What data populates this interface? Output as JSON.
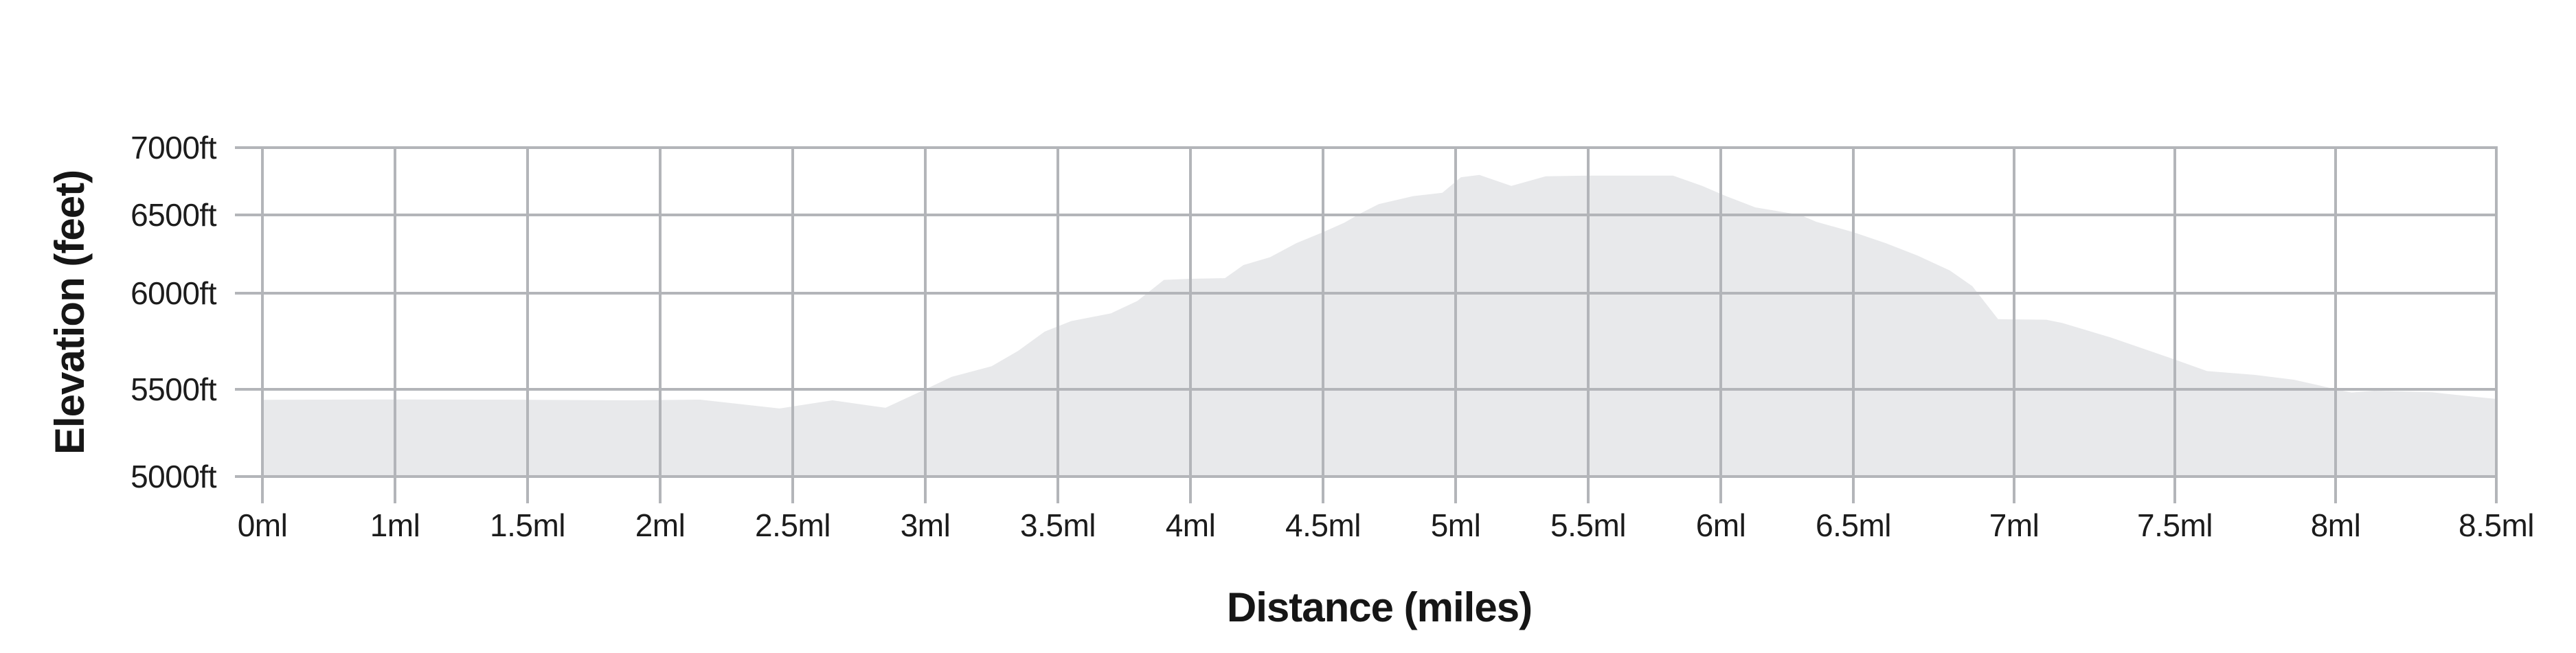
{
  "chart_data": {
    "type": "area",
    "title": "",
    "xlabel": "Distance (miles)",
    "ylabel": "Elevation (feet)",
    "x_tick_labels": [
      "0ml",
      "1ml",
      "1.5ml",
      "2ml",
      "2.5ml",
      "3ml",
      "3.5ml",
      "4ml",
      "4.5ml",
      "5ml",
      "5.5ml",
      "6ml",
      "6.5ml",
      "7ml",
      "7.5ml",
      "8ml",
      "8.5ml"
    ],
    "y_tick_labels": [
      "5000ft",
      "5500ft",
      "6000ft",
      "6500ft",
      "7000ft"
    ],
    "y_tick_values": [
      5000,
      5500,
      6000,
      6500,
      7000
    ],
    "ylim": [
      5000,
      7000
    ],
    "grid": true,
    "legend": false,
    "x_unit": "miles",
    "y_unit": "feet",
    "points": [
      [
        0.0,
        5440
      ],
      [
        0.5,
        5441
      ],
      [
        1.0,
        5442
      ],
      [
        1.5,
        5440
      ],
      [
        1.9,
        5437
      ],
      [
        2.15,
        5441
      ],
      [
        2.45,
        5390
      ],
      [
        2.65,
        5437
      ],
      [
        2.85,
        5394
      ],
      [
        3.0,
        5500
      ],
      [
        3.1,
        5565
      ],
      [
        3.25,
        5620
      ],
      [
        3.35,
        5700
      ],
      [
        3.45,
        5800
      ],
      [
        3.55,
        5855
      ],
      [
        3.7,
        5895
      ],
      [
        3.8,
        5960
      ],
      [
        3.9,
        6085
      ],
      [
        4.0,
        6092
      ],
      [
        4.13,
        6096
      ],
      [
        4.2,
        6180
      ],
      [
        4.3,
        6230
      ],
      [
        4.4,
        6320
      ],
      [
        4.5,
        6390
      ],
      [
        4.58,
        6450
      ],
      [
        4.64,
        6510
      ],
      [
        4.71,
        6580
      ],
      [
        4.84,
        6640
      ],
      [
        4.95,
        6665
      ],
      [
        5.02,
        6780
      ],
      [
        5.09,
        6797
      ],
      [
        5.21,
        6716
      ],
      [
        5.34,
        6787
      ],
      [
        5.5,
        6792
      ],
      [
        5.82,
        6792
      ],
      [
        5.93,
        6716
      ],
      [
        6.02,
        6640
      ],
      [
        6.13,
        6556
      ],
      [
        6.3,
        6500
      ],
      [
        6.36,
        6456
      ],
      [
        6.5,
        6390
      ],
      [
        6.6,
        6320
      ],
      [
        6.7,
        6240
      ],
      [
        6.8,
        6145
      ],
      [
        6.87,
        6045
      ],
      [
        6.95,
        5865
      ],
      [
        7.1,
        5862
      ],
      [
        7.15,
        5845
      ],
      [
        7.3,
        5770
      ],
      [
        7.5,
        5655
      ],
      [
        7.6,
        5595
      ],
      [
        7.75,
        5575
      ],
      [
        7.87,
        5550
      ],
      [
        7.95,
        5520
      ],
      [
        8.0,
        5500
      ],
      [
        8.05,
        5482
      ],
      [
        8.12,
        5492
      ],
      [
        8.3,
        5483
      ],
      [
        8.42,
        5460
      ],
      [
        8.5,
        5445
      ]
    ],
    "colors": {
      "background": "#ffffff",
      "area_fill": "#e8e9eb",
      "gridline": "#b3b5b9",
      "text": "#1c1c1c"
    }
  }
}
